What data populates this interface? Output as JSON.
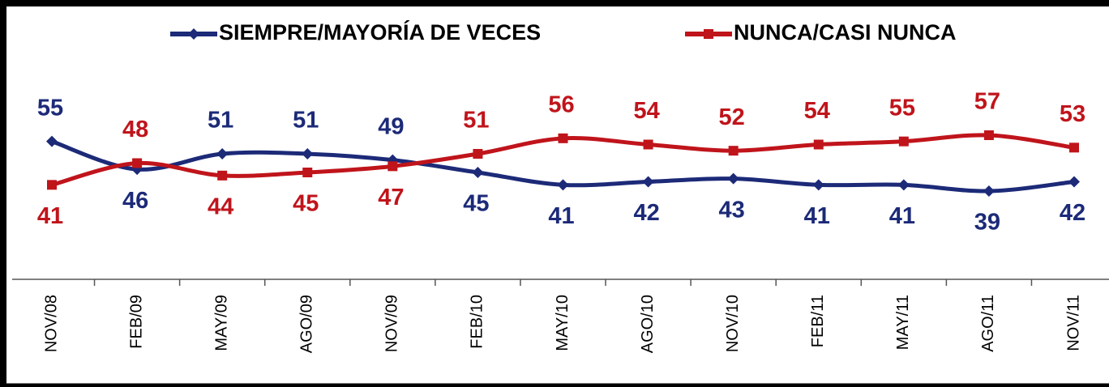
{
  "chart_data": {
    "type": "line",
    "categories": [
      "NOV/08",
      "FEB/09",
      "MAY/09",
      "AGO/09",
      "NOV/09",
      "FEB/10",
      "MAY/10",
      "AGO/10",
      "NOV/10",
      "FEB/11",
      "MAY/11",
      "AGO/11",
      "NOV/11"
    ],
    "series": [
      {
        "name": "SIEMPRE/MAYORÍA DE VECES",
        "color": "#1c2a78",
        "marker": "diamond",
        "values": [
          55,
          46,
          51,
          51,
          49,
          45,
          41,
          42,
          43,
          41,
          41,
          39,
          42
        ]
      },
      {
        "name": "NUNCA/CASI NUNCA",
        "color": "#c0141b",
        "marker": "square",
        "values": [
          41,
          48,
          44,
          45,
          47,
          51,
          56,
          54,
          52,
          54,
          55,
          57,
          53
        ]
      }
    ],
    "legend": "top"
  }
}
